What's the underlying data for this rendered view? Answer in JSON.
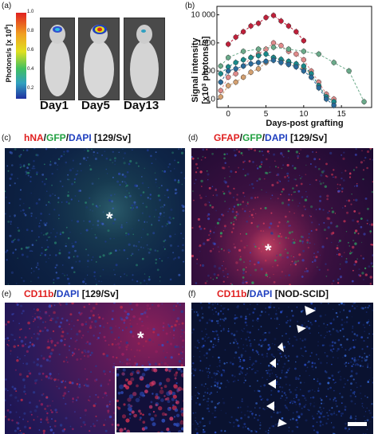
{
  "panels": {
    "a": {
      "letter": "(a)",
      "scale_label": "Photons/s [x 10",
      "scale_exp": "6",
      "scale_close": "]",
      "scale_ticks": [
        "1.0",
        "0.8",
        "0.6",
        "0.4",
        "0.2"
      ],
      "days": [
        "Day1",
        "Day5",
        "Day13"
      ]
    },
    "b": {
      "letter": "(b)"
    },
    "c": {
      "letter": "(c)",
      "t1": "hNA",
      "t2": "/",
      "t3": "GFP",
      "t4": "/",
      "t5": "DAPI",
      "t6": " [129/Sv]",
      "star": "*"
    },
    "d": {
      "letter": "(d)",
      "t1": "GFAP",
      "t2": "/",
      "t3": "GFP",
      "t4": "/",
      "t5": "DAPI",
      "t6": " [129/Sv]",
      "star": "*"
    },
    "e": {
      "letter": "(e)",
      "t1": "CD11b",
      "t2": "/",
      "t3": "DAPI",
      "t4": " [129/Sv]",
      "star": "*"
    },
    "f": {
      "letter": "(f)",
      "t1": "CD11b",
      "t2": "/",
      "t3": "DAPI",
      "t4": " [NOD-SCID]"
    }
  },
  "chart_data": {
    "type": "line",
    "ylabel_line1": "Signal intensity",
    "ylabel_line2": "[x10",
    "ylabel_exp": "3",
    "ylabel_line3": " photons/s]",
    "xlabel": "Days-post grafting",
    "xticks": [
      0,
      5,
      10,
      15
    ],
    "yticks": [
      10,
      100,
      1000,
      10000
    ],
    "ytick_labels": [
      "10",
      "100",
      "1000",
      "10 000"
    ],
    "ylog": true,
    "xlim": [
      -1.5,
      19
    ],
    "ylim": [
      5,
      20000
    ],
    "series": [
      {
        "color": "#c0203a",
        "x": [
          0,
          1,
          2,
          3,
          4,
          5,
          6,
          7,
          8,
          9,
          10
        ],
        "y": [
          900,
          1600,
          2500,
          4000,
          5000,
          8000,
          9500,
          6000,
          4000,
          2500,
          1200
        ]
      },
      {
        "color": "#e08a8a",
        "x": [
          -1,
          0,
          1,
          2,
          3,
          4,
          5,
          6,
          7,
          8,
          9,
          10,
          11,
          12,
          13,
          14
        ],
        "y": [
          20,
          60,
          80,
          150,
          300,
          400,
          600,
          1000,
          800,
          500,
          400,
          250,
          100,
          40,
          15,
          10
        ]
      },
      {
        "color": "#d4a070",
        "x": [
          -1,
          0,
          1,
          2,
          3,
          4,
          5,
          6,
          7,
          8,
          9,
          10,
          11,
          12,
          13,
          14
        ],
        "y": [
          12,
          30,
          40,
          60,
          90,
          120,
          200,
          300,
          250,
          200,
          150,
          120,
          80,
          30,
          12,
          8
        ]
      },
      {
        "color": "#6aaa8a",
        "x": [
          -1,
          0,
          2,
          4,
          6,
          8,
          10,
          12,
          14,
          16,
          18
        ],
        "y": [
          150,
          300,
          500,
          600,
          700,
          600,
          500,
          400,
          200,
          100,
          8
        ]
      },
      {
        "color": "#1a8a8a",
        "x": [
          -1,
          0,
          1,
          2,
          3,
          4,
          5,
          6,
          7,
          8,
          9,
          10,
          11,
          12,
          13,
          14
        ],
        "y": [
          80,
          140,
          200,
          250,
          300,
          350,
          400,
          300,
          260,
          220,
          180,
          150,
          80,
          30,
          12,
          8
        ]
      },
      {
        "color": "#2a6a9a",
        "x": [
          -1,
          0,
          1,
          2,
          3,
          4,
          5,
          6,
          7,
          8,
          9,
          10,
          11,
          12,
          13,
          14
        ],
        "y": [
          40,
          100,
          120,
          150,
          180,
          200,
          220,
          240,
          200,
          170,
          140,
          100,
          60,
          25,
          10,
          6
        ]
      }
    ]
  }
}
